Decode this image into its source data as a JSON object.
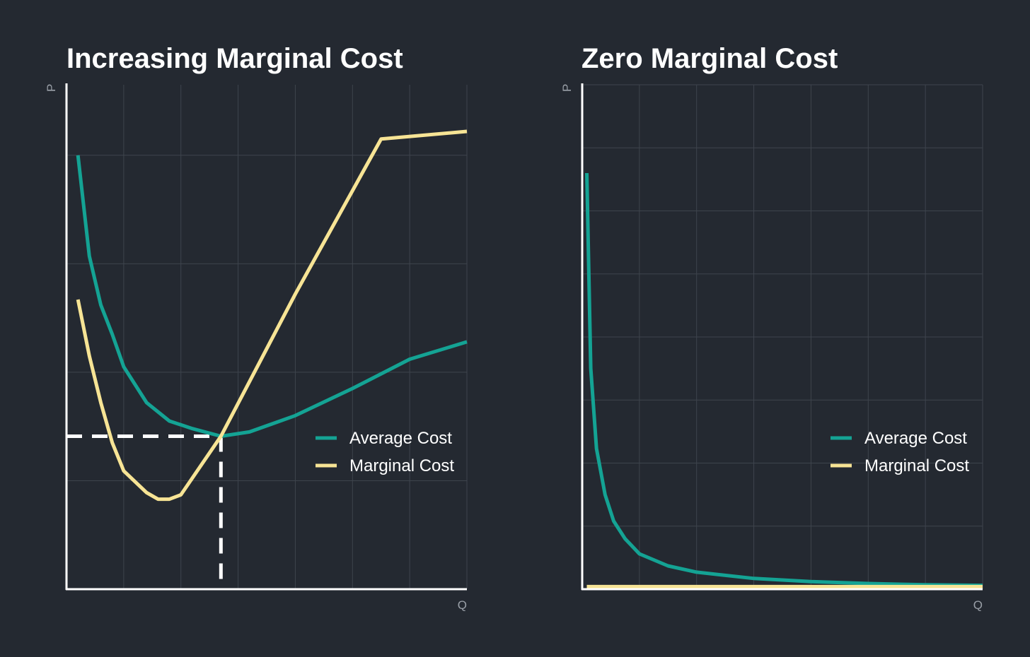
{
  "colors": {
    "background": "#242931",
    "grid": "#3e444d",
    "axis": "#ffffff",
    "average_cost": "#14a394",
    "marginal_cost": "#f7e495",
    "guide": "#ffffff"
  },
  "chart_data": [
    {
      "type": "line",
      "title": "Increasing Marginal Cost",
      "xlabel": "Q",
      "ylabel": "P",
      "xlim": [
        0,
        7
      ],
      "ylim": [
        0,
        4.65
      ],
      "grid": true,
      "legend_position": "right",
      "series": [
        {
          "name": "Average Cost",
          "color": "#14a394",
          "points": [
            [
              0.2,
              4.0
            ],
            [
              0.4,
              3.07
            ],
            [
              0.6,
              2.62
            ],
            [
              0.8,
              2.35
            ],
            [
              1.0,
              2.05
            ],
            [
              1.4,
              1.72
            ],
            [
              1.8,
              1.55
            ],
            [
              2.2,
              1.48
            ],
            [
              2.7,
              1.41
            ],
            [
              3.2,
              1.45
            ],
            [
              4.0,
              1.6
            ],
            [
              5.0,
              1.85
            ],
            [
              6.0,
              2.12
            ],
            [
              7.0,
              2.28
            ]
          ]
        },
        {
          "name": "Marginal Cost",
          "color": "#f7e495",
          "points": [
            [
              0.2,
              2.67
            ],
            [
              0.4,
              2.15
            ],
            [
              0.6,
              1.72
            ],
            [
              0.8,
              1.35
            ],
            [
              1.0,
              1.09
            ],
            [
              1.4,
              0.89
            ],
            [
              1.6,
              0.83
            ],
            [
              1.8,
              0.83
            ],
            [
              2.0,
              0.87
            ],
            [
              2.7,
              1.41
            ],
            [
              4.0,
              2.72
            ],
            [
              5.5,
              4.15
            ],
            [
              7.0,
              4.22
            ]
          ]
        }
      ],
      "guides": {
        "x": 2.7,
        "y": 1.41
      }
    },
    {
      "type": "line",
      "title": "Zero Marginal Cost",
      "xlabel": "Q",
      "ylabel": "P",
      "xlim": [
        0,
        7
      ],
      "ylim": [
        0,
        8
      ],
      "grid": true,
      "legend_position": "right",
      "series": [
        {
          "name": "Average Cost",
          "color": "#14a394",
          "points": [
            [
              0.08,
              6.6
            ],
            [
              0.15,
              3.5
            ],
            [
              0.25,
              2.23
            ],
            [
              0.4,
              1.5
            ],
            [
              0.55,
              1.08
            ],
            [
              0.75,
              0.8
            ],
            [
              1.0,
              0.56
            ],
            [
              1.5,
              0.37
            ],
            [
              2.0,
              0.27
            ],
            [
              3.0,
              0.17
            ],
            [
              4.0,
              0.12
            ],
            [
              5.0,
              0.09
            ],
            [
              6.0,
              0.07
            ],
            [
              7.0,
              0.06
            ]
          ]
        },
        {
          "name": "Marginal Cost",
          "color": "#f7e495",
          "points": [
            [
              0.08,
              0.04
            ],
            [
              7.0,
              0.04
            ]
          ]
        }
      ]
    }
  ]
}
